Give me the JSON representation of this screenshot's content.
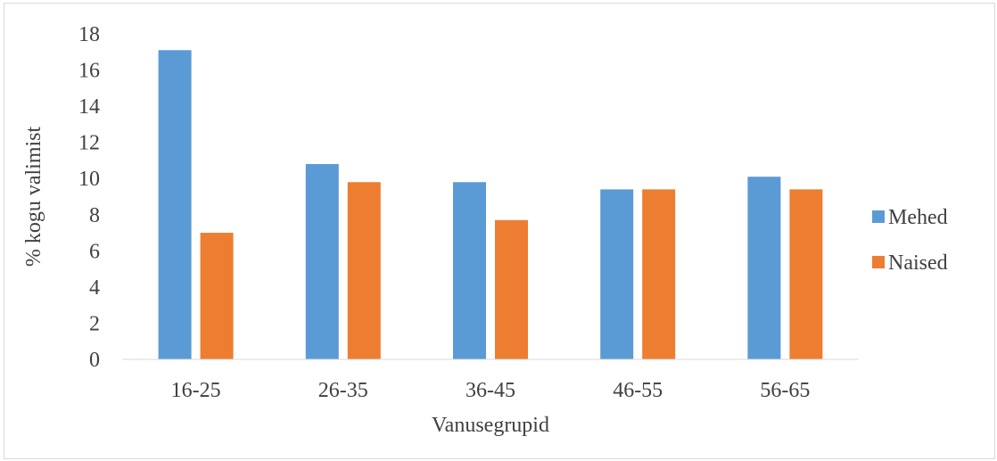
{
  "chart_data": {
    "type": "bar",
    "title": "",
    "xlabel": "Vanusegrupid",
    "ylabel": "% kogu valimist",
    "ylim": [
      0,
      18
    ],
    "yticks": [
      0,
      2,
      4,
      6,
      8,
      10,
      12,
      14,
      16,
      18
    ],
    "categories": [
      "16-25",
      "26-35",
      "36-45",
      "46-55",
      "56-65"
    ],
    "series": [
      {
        "name": "Mehed",
        "color": "#5B9BD5",
        "values": [
          17.1,
          10.8,
          9.8,
          9.4,
          10.1
        ]
      },
      {
        "name": "Naised",
        "color": "#ED7D31",
        "values": [
          7.0,
          9.8,
          7.7,
          9.4,
          9.4
        ]
      }
    ],
    "legend_position": "right",
    "grid": false
  }
}
